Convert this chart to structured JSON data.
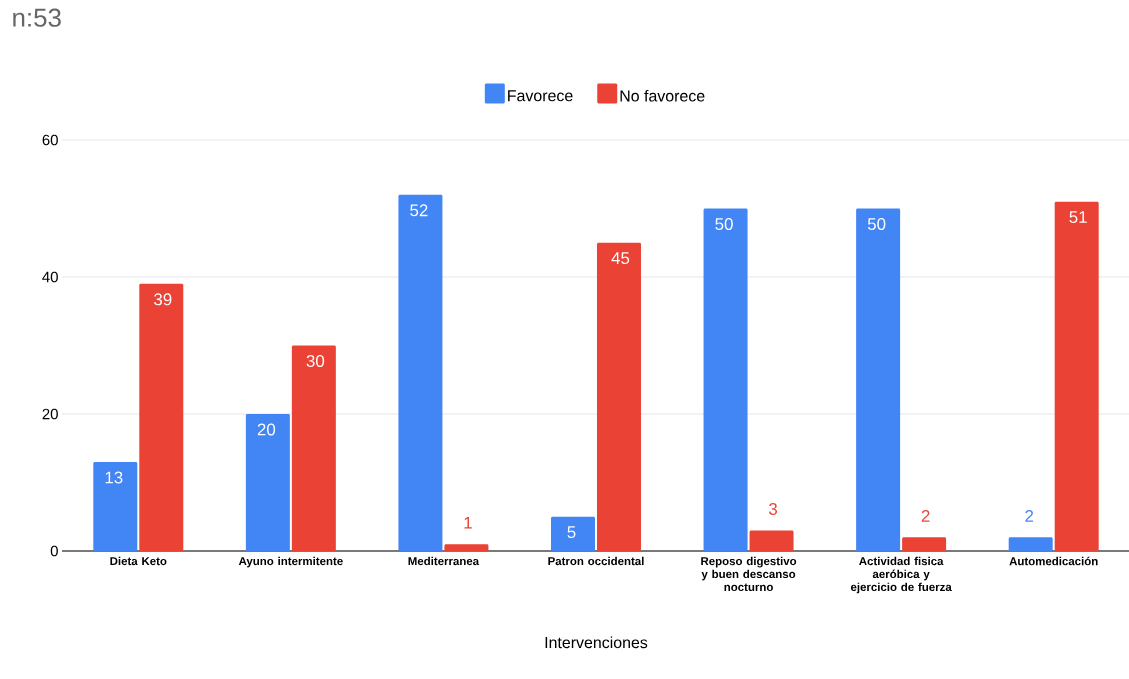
{
  "chart_data": {
    "type": "bar",
    "title": "n:53",
    "xlabel": "Intervenciones",
    "categories": [
      "Dieta Keto",
      "Ayuno intermitente",
      "Mediterranea",
      "Patron occidental",
      "Reposo digestivo y buen descanso nocturno",
      "Actividad fisica aeróbica y ejercicio de fuerza",
      "Automedicación"
    ],
    "series": [
      {
        "name": "Favorece",
        "color": "#4285f4",
        "values": [
          13,
          20,
          52,
          5,
          50,
          50,
          2
        ]
      },
      {
        "name": "No favorece",
        "color": "#ea4335",
        "values": [
          39,
          30,
          1,
          45,
          3,
          2,
          51
        ]
      }
    ],
    "ylim": [
      0,
      60
    ],
    "yticks": [
      0,
      20,
      40,
      60
    ],
    "grid": "y",
    "legend": "top",
    "data_labels": true
  }
}
